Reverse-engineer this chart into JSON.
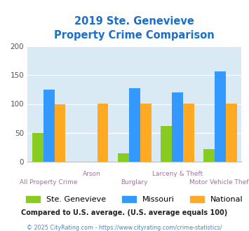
{
  "title_line1": "2019 Ste. Genevieve",
  "title_line2": "Property Crime Comparison",
  "title_color": "#1a6fcc",
  "categories": [
    "All Property Crime",
    "Arson",
    "Burglary",
    "Larceny & Theft",
    "Motor Vehicle Theft"
  ],
  "ste_genevieve": [
    50,
    0,
    15,
    62,
    22
  ],
  "missouri": [
    125,
    0,
    127,
    120,
    156
  ],
  "national": [
    100,
    101,
    101,
    101,
    101
  ],
  "color_ste": "#88cc22",
  "color_mo": "#3399ff",
  "color_nat": "#ffaa22",
  "ylim": [
    0,
    200
  ],
  "yticks": [
    0,
    50,
    100,
    150,
    200
  ],
  "bg_color": "#daeaf5",
  "footnote1": "Compared to U.S. average. (U.S. average equals 100)",
  "footnote2": "© 2025 CityRating.com - https://www.cityrating.com/crime-statistics/",
  "footnote1_color": "#222222",
  "footnote2_color": "#4488cc",
  "legend_labels": [
    "Ste. Genevieve",
    "Missouri",
    "National"
  ],
  "xlabel_color": "#997799",
  "bar_width": 0.26
}
